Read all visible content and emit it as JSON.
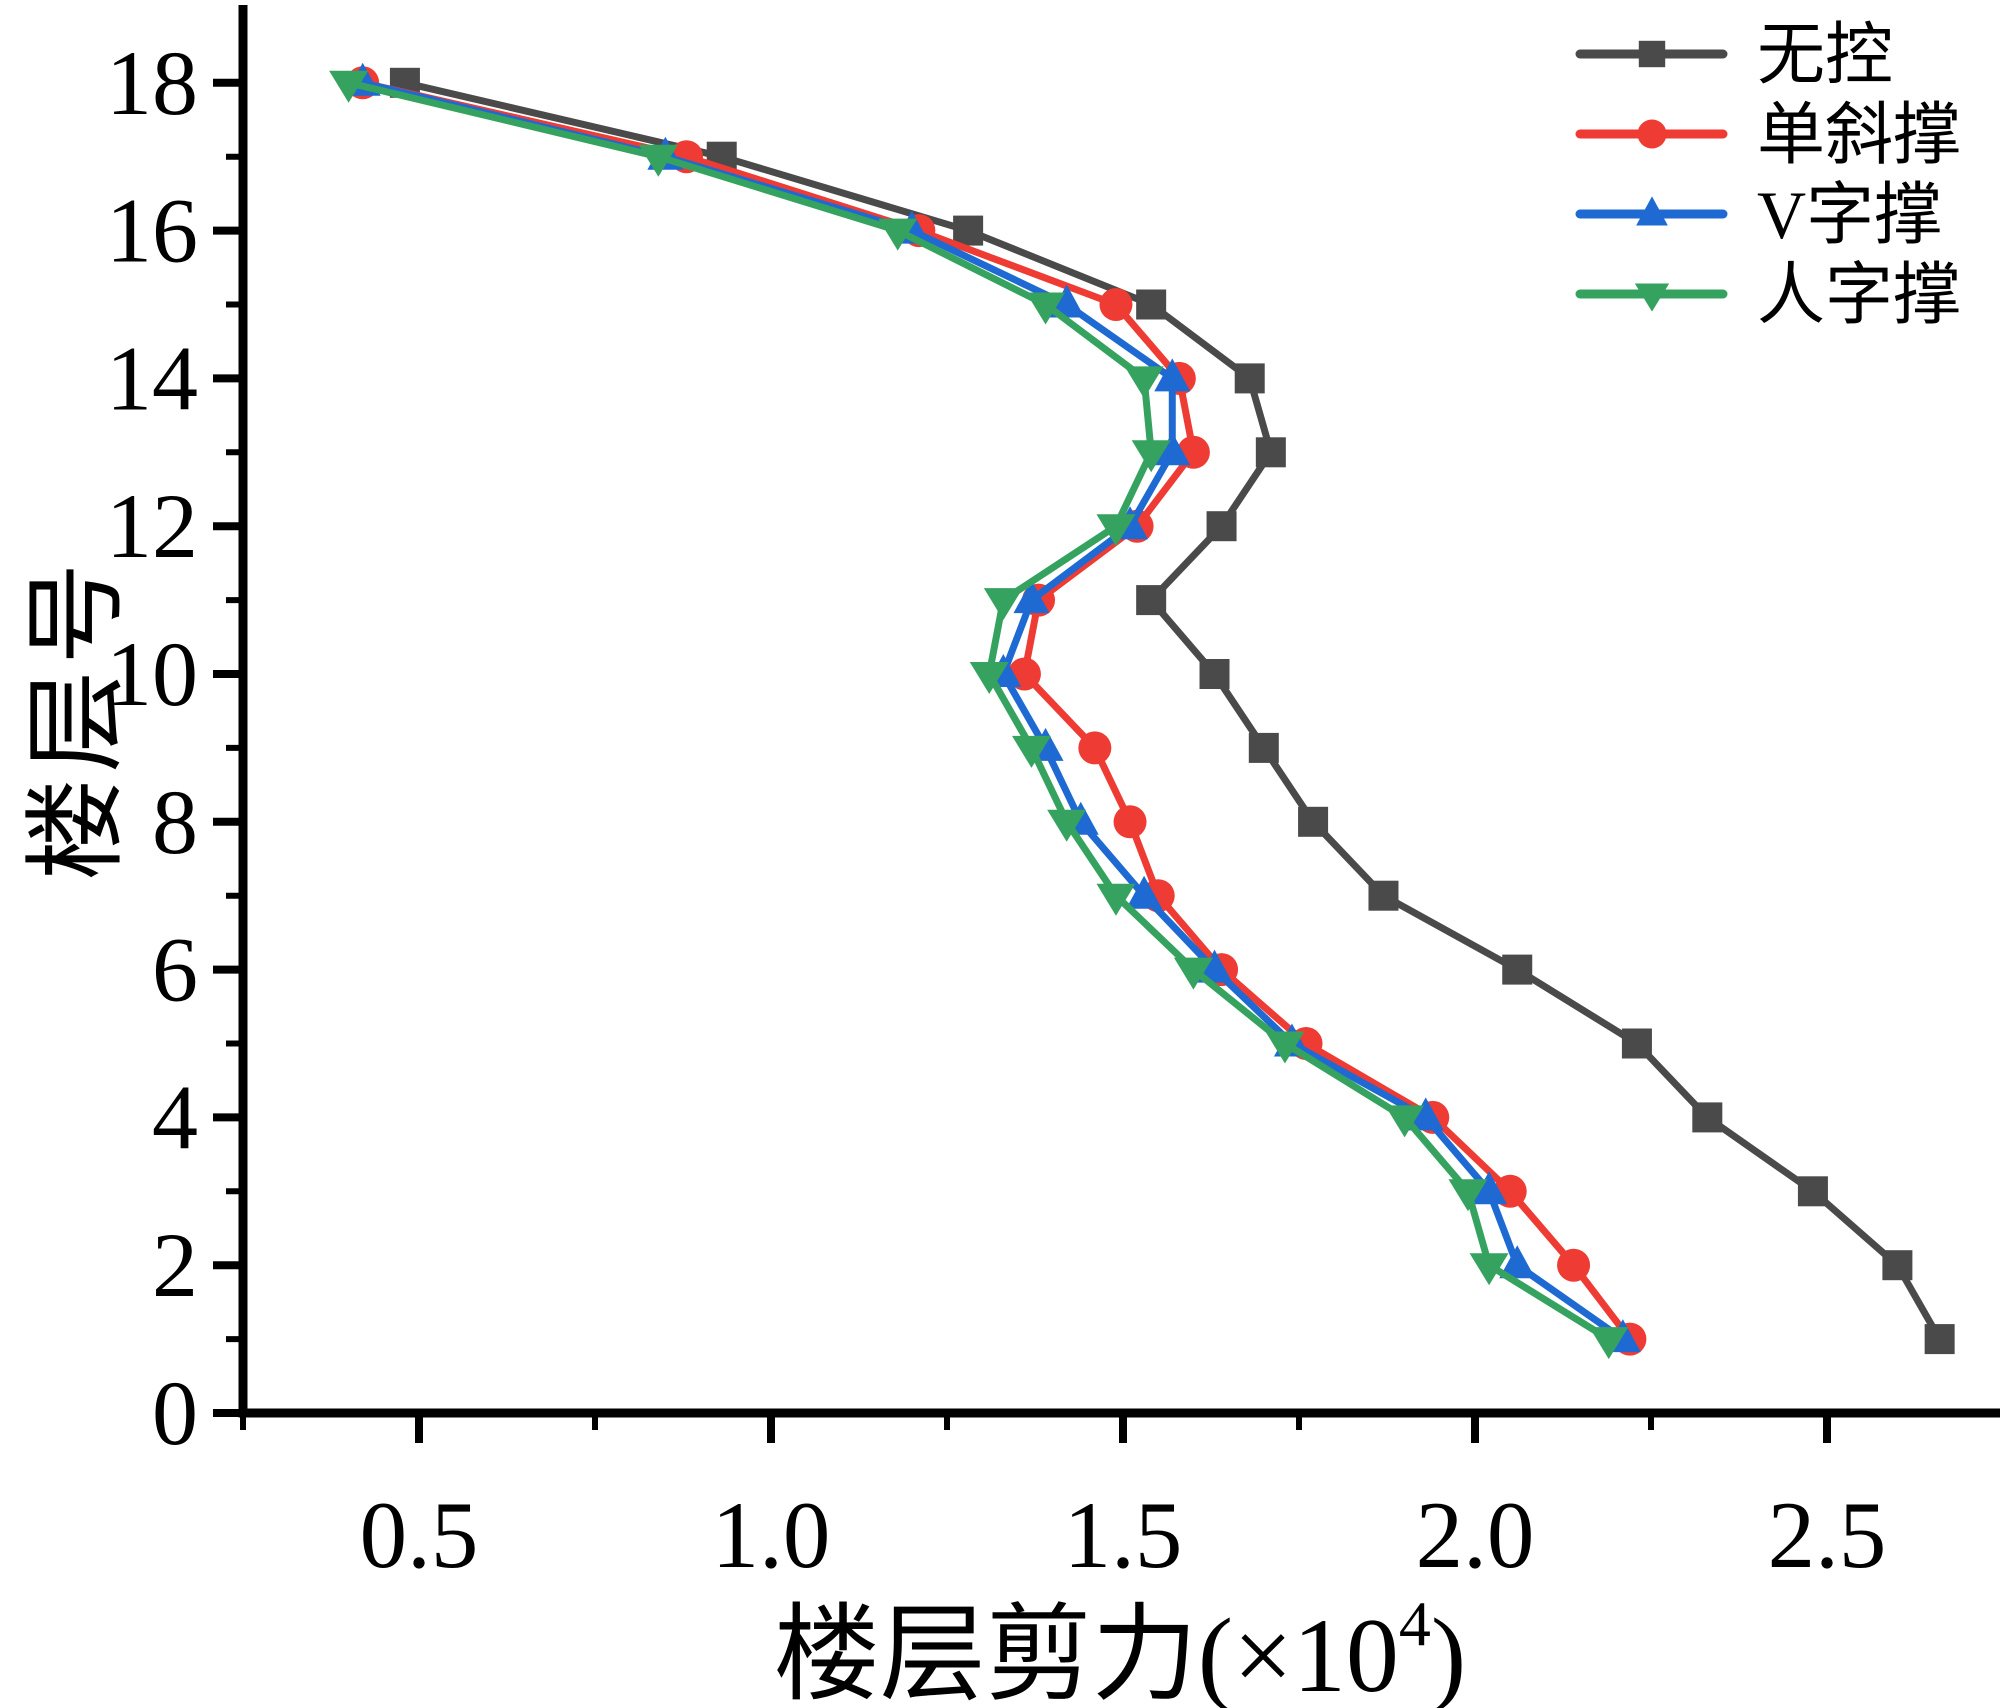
{
  "figure": {
    "background": "#ffffff",
    "xlabel_main": "楼层剪力(×10",
    "xlabel_sup": "4",
    "xlabel_end": ")",
    "ylabel": "楼层号"
  },
  "chart_data": {
    "type": "line",
    "title": "",
    "xlabel": "楼层剪力(×10⁴)",
    "ylabel": "楼层号",
    "grid": false,
    "legend_position": "top-right",
    "x_axis": {
      "min": 0.25,
      "max": 2.75,
      "major_ticks": [
        0.5,
        1.0,
        1.5,
        2.0,
        2.5
      ],
      "tick_labels": [
        "0.5",
        "1.0",
        "1.5",
        "2.0",
        "2.5"
      ],
      "minor_ticks": [
        0.25,
        0.75,
        1.25,
        1.75,
        2.25,
        2.75
      ]
    },
    "y_axis": {
      "min": 0,
      "max": 18.7,
      "major_ticks": [
        0,
        2,
        4,
        6,
        8,
        10,
        12,
        14,
        16,
        18
      ],
      "tick_labels": [
        "0",
        "2",
        "4",
        "6",
        "8",
        "10",
        "12",
        "14",
        "16",
        "18"
      ],
      "minor_ticks": [
        1,
        3,
        5,
        7,
        9,
        11,
        13,
        15,
        17
      ]
    },
    "floors": [
      1,
      2,
      3,
      4,
      5,
      6,
      7,
      8,
      9,
      10,
      11,
      12,
      13,
      14,
      15,
      16,
      17,
      18
    ],
    "series": [
      {
        "name": "无控",
        "color": "#4a4a4a",
        "marker": "square",
        "values": [
          2.66,
          2.6,
          2.48,
          2.33,
          2.23,
          2.06,
          1.87,
          1.77,
          1.7,
          1.63,
          1.54,
          1.64,
          1.71,
          1.68,
          1.54,
          1.28,
          0.93,
          0.48
        ]
      },
      {
        "name": "单斜撑",
        "color": "#ee3b33",
        "marker": "circle",
        "values": [
          2.22,
          2.14,
          2.05,
          1.94,
          1.76,
          1.64,
          1.55,
          1.51,
          1.46,
          1.36,
          1.38,
          1.52,
          1.6,
          1.58,
          1.49,
          1.21,
          0.88,
          0.42
        ]
      },
      {
        "name": "V字撑",
        "color": "#1e6ad2",
        "marker": "triangle-up",
        "values": [
          2.21,
          2.06,
          2.02,
          1.93,
          1.74,
          1.63,
          1.53,
          1.44,
          1.39,
          1.33,
          1.37,
          1.51,
          1.57,
          1.57,
          1.42,
          1.2,
          0.85,
          0.42
        ]
      },
      {
        "name": "人字撑",
        "color": "#35a35f",
        "marker": "triangle-down",
        "values": [
          2.19,
          2.02,
          1.99,
          1.9,
          1.73,
          1.6,
          1.49,
          1.42,
          1.37,
          1.31,
          1.33,
          1.49,
          1.54,
          1.53,
          1.39,
          1.18,
          0.84,
          0.4
        ]
      }
    ]
  }
}
